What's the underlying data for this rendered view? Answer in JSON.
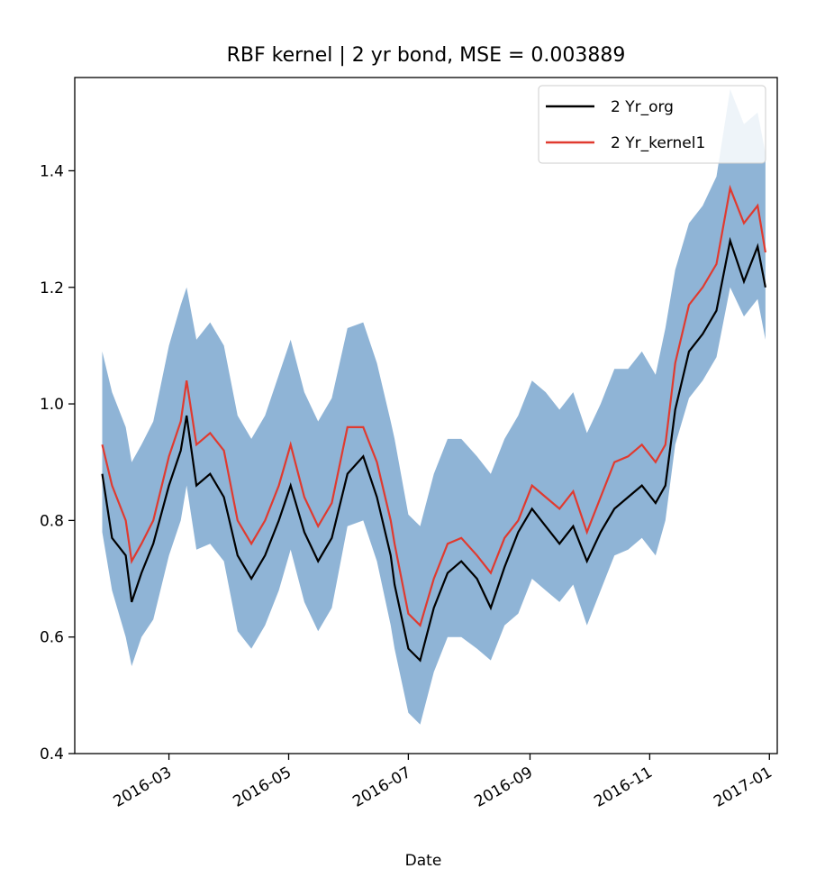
{
  "chart_data": {
    "type": "line",
    "title": "RBF kernel | 2 yr bond, MSE = 0.003889",
    "xlabel": "Date",
    "ylabel": "",
    "xlim": [
      "2016-01-13",
      "2017-01-05"
    ],
    "ylim": [
      0.4,
      1.56
    ],
    "xticks": [
      "2016-03-01",
      "2016-05-01",
      "2016-07-01",
      "2016-09-01",
      "2016-11-01",
      "2017-01-01"
    ],
    "xtick_labels": [
      "2016-03",
      "2016-05",
      "2016-07",
      "2016-09",
      "2016-11",
      "2017-01"
    ],
    "yticks": [
      0.4,
      0.6,
      0.8,
      1.0,
      1.2,
      1.4
    ],
    "ytick_labels": [
      "0.4",
      "0.6",
      "0.8",
      "1.0",
      "1.2",
      "1.4"
    ],
    "grid": false,
    "legend_position": "upper right",
    "colors": {
      "org": "#000000",
      "kernel": "#e03a2f",
      "band": "#8fb4d6"
    },
    "series": [
      {
        "name": "2 Yr_org",
        "x": [
          "2016-01-27",
          "2016-02-01",
          "2016-02-08",
          "2016-02-11",
          "2016-02-16",
          "2016-02-22",
          "2016-03-01",
          "2016-03-07",
          "2016-03-10",
          "2016-03-15",
          "2016-03-22",
          "2016-03-29",
          "2016-04-05",
          "2016-04-12",
          "2016-04-19",
          "2016-04-26",
          "2016-05-02",
          "2016-05-09",
          "2016-05-16",
          "2016-05-23",
          "2016-05-31",
          "2016-06-08",
          "2016-06-15",
          "2016-06-22",
          "2016-06-24",
          "2016-07-01",
          "2016-07-07",
          "2016-07-14",
          "2016-07-21",
          "2016-07-28",
          "2016-08-05",
          "2016-08-12",
          "2016-08-19",
          "2016-08-26",
          "2016-09-02",
          "2016-09-09",
          "2016-09-16",
          "2016-09-23",
          "2016-09-30",
          "2016-10-07",
          "2016-10-14",
          "2016-10-21",
          "2016-10-28",
          "2016-11-04",
          "2016-11-09",
          "2016-11-14",
          "2016-11-21",
          "2016-11-28",
          "2016-12-05",
          "2016-12-12",
          "2016-12-19",
          "2016-12-26",
          "2016-12-30"
        ],
        "values": [
          0.88,
          0.77,
          0.74,
          0.66,
          0.71,
          0.76,
          0.86,
          0.92,
          0.98,
          0.86,
          0.88,
          0.84,
          0.74,
          0.7,
          0.74,
          0.8,
          0.86,
          0.78,
          0.73,
          0.77,
          0.88,
          0.91,
          0.84,
          0.74,
          0.69,
          0.58,
          0.56,
          0.65,
          0.71,
          0.73,
          0.7,
          0.65,
          0.72,
          0.78,
          0.82,
          0.79,
          0.76,
          0.79,
          0.73,
          0.78,
          0.82,
          0.84,
          0.86,
          0.83,
          0.86,
          0.99,
          1.09,
          1.12,
          1.16,
          1.28,
          1.21,
          1.27,
          1.2
        ]
      },
      {
        "name": "2 Yr_kernel1",
        "x": [
          "2016-01-27",
          "2016-02-01",
          "2016-02-08",
          "2016-02-11",
          "2016-02-16",
          "2016-02-22",
          "2016-03-01",
          "2016-03-07",
          "2016-03-10",
          "2016-03-15",
          "2016-03-22",
          "2016-03-29",
          "2016-04-05",
          "2016-04-12",
          "2016-04-19",
          "2016-04-26",
          "2016-05-02",
          "2016-05-09",
          "2016-05-16",
          "2016-05-23",
          "2016-05-31",
          "2016-06-08",
          "2016-06-15",
          "2016-06-22",
          "2016-06-24",
          "2016-07-01",
          "2016-07-07",
          "2016-07-14",
          "2016-07-21",
          "2016-07-28",
          "2016-08-05",
          "2016-08-12",
          "2016-08-19",
          "2016-08-26",
          "2016-09-02",
          "2016-09-09",
          "2016-09-16",
          "2016-09-23",
          "2016-09-30",
          "2016-10-07",
          "2016-10-14",
          "2016-10-21",
          "2016-10-28",
          "2016-11-04",
          "2016-11-09",
          "2016-11-14",
          "2016-11-21",
          "2016-11-28",
          "2016-12-05",
          "2016-12-12",
          "2016-12-19",
          "2016-12-26",
          "2016-12-30"
        ],
        "values": [
          0.93,
          0.86,
          0.8,
          0.73,
          0.76,
          0.8,
          0.91,
          0.97,
          1.04,
          0.93,
          0.95,
          0.92,
          0.8,
          0.76,
          0.8,
          0.86,
          0.93,
          0.84,
          0.79,
          0.83,
          0.96,
          0.96,
          0.9,
          0.8,
          0.76,
          0.64,
          0.62,
          0.7,
          0.76,
          0.77,
          0.74,
          0.71,
          0.77,
          0.8,
          0.86,
          0.84,
          0.82,
          0.85,
          0.78,
          0.84,
          0.9,
          0.91,
          0.93,
          0.9,
          0.93,
          1.07,
          1.17,
          1.2,
          1.24,
          1.37,
          1.31,
          1.34,
          1.26
        ]
      }
    ],
    "band": {
      "x": [
        "2016-01-27",
        "2016-02-01",
        "2016-02-08",
        "2016-02-11",
        "2016-02-16",
        "2016-02-22",
        "2016-03-01",
        "2016-03-07",
        "2016-03-10",
        "2016-03-15",
        "2016-03-22",
        "2016-03-29",
        "2016-04-05",
        "2016-04-12",
        "2016-04-19",
        "2016-04-26",
        "2016-05-02",
        "2016-05-09",
        "2016-05-16",
        "2016-05-23",
        "2016-05-31",
        "2016-06-08",
        "2016-06-15",
        "2016-06-22",
        "2016-06-24",
        "2016-07-01",
        "2016-07-07",
        "2016-07-14",
        "2016-07-21",
        "2016-07-28",
        "2016-08-05",
        "2016-08-12",
        "2016-08-19",
        "2016-08-26",
        "2016-09-02",
        "2016-09-09",
        "2016-09-16",
        "2016-09-23",
        "2016-09-30",
        "2016-10-07",
        "2016-10-14",
        "2016-10-21",
        "2016-10-28",
        "2016-11-04",
        "2016-11-09",
        "2016-11-14",
        "2016-11-21",
        "2016-11-28",
        "2016-12-05",
        "2016-12-12",
        "2016-12-19",
        "2016-12-26",
        "2016-12-30"
      ],
      "lower": [
        0.78,
        0.68,
        0.6,
        0.55,
        0.6,
        0.63,
        0.74,
        0.8,
        0.86,
        0.75,
        0.76,
        0.73,
        0.61,
        0.58,
        0.62,
        0.68,
        0.75,
        0.66,
        0.61,
        0.65,
        0.79,
        0.8,
        0.73,
        0.62,
        0.58,
        0.47,
        0.45,
        0.54,
        0.6,
        0.6,
        0.58,
        0.56,
        0.62,
        0.64,
        0.7,
        0.68,
        0.66,
        0.69,
        0.62,
        0.68,
        0.74,
        0.75,
        0.77,
        0.74,
        0.8,
        0.93,
        1.01,
        1.04,
        1.08,
        1.2,
        1.15,
        1.18,
        1.11
      ],
      "upper": [
        1.09,
        1.02,
        0.96,
        0.9,
        0.93,
        0.97,
        1.1,
        1.17,
        1.2,
        1.11,
        1.14,
        1.1,
        0.98,
        0.94,
        0.98,
        1.05,
        1.11,
        1.02,
        0.97,
        1.01,
        1.13,
        1.14,
        1.07,
        0.97,
        0.94,
        0.81,
        0.79,
        0.88,
        0.94,
        0.94,
        0.91,
        0.88,
        0.94,
        0.98,
        1.04,
        1.02,
        0.99,
        1.02,
        0.95,
        1.0,
        1.06,
        1.06,
        1.09,
        1.05,
        1.13,
        1.23,
        1.31,
        1.34,
        1.39,
        1.54,
        1.48,
        1.5,
        1.43
      ]
    }
  }
}
